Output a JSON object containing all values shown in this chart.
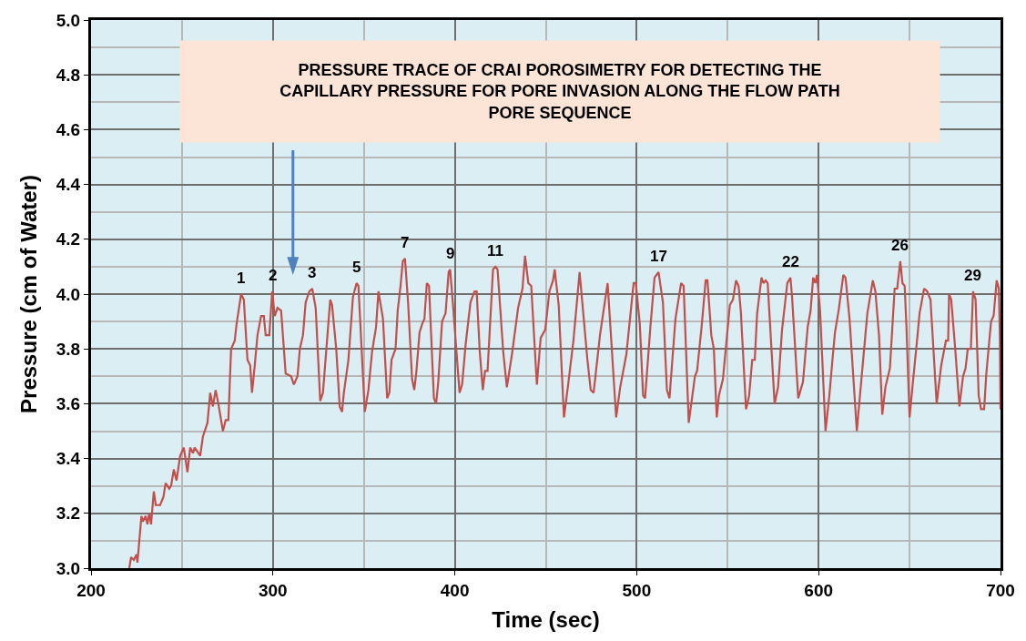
{
  "chart_data": {
    "type": "line",
    "title": "PRESSURE TRACE OF CRAI POROSIMETRY FOR DETECTING THE\nCAPILLARY PRESSURE FOR PORE INVASION ALONG THE FLOW PATH\nPORE SEQUENCE",
    "xlabel": "Time (sec)",
    "ylabel": "Pressure (cm of Water)",
    "series": [
      {
        "color": "#c0504d",
        "x": [
          221,
          222,
          223.5,
          225,
          225.5,
          227.7,
          228.5,
          230,
          231,
          232,
          233,
          234.5,
          235.6,
          238,
          239.8,
          241,
          243,
          244,
          245.5,
          247,
          249,
          251,
          253,
          254.5,
          256,
          257,
          260,
          261.5,
          264,
          265.5,
          267,
          268.5,
          270,
          272.5,
          274,
          275.5,
          277,
          279,
          280,
          282.5,
          284,
          286,
          287.5,
          288.5,
          290,
          291.5,
          293.5,
          295,
          296,
          298,
          299.6,
          301,
          302.5,
          304.5,
          307,
          310,
          311.5,
          313.5,
          314.8,
          316.5,
          318,
          320,
          321.6,
          323.5,
          326,
          327.5,
          331.5,
          332.5,
          334.8,
          336.7,
          338,
          339,
          341.5,
          344,
          346,
          347,
          350.5,
          352.5,
          354.5,
          356.7,
          358,
          360.5,
          362.8,
          364,
          365.2,
          367.4,
          368.6,
          370,
          371.4,
          372.6,
          374.3,
          376.5,
          377.7,
          378.9,
          380.6,
          382,
          383.3,
          384.6,
          385.8,
          388.5,
          389.7,
          390.9,
          393,
          394.9,
          396.6,
          397.4,
          399,
          400.9,
          402.6,
          404,
          406,
          408.6,
          410.8,
          412,
          413.7,
          415.4,
          416.6,
          418,
          421,
          422.3,
          423.5,
          426.6,
          428.6,
          431.4,
          434.8,
          437.2,
          438.6,
          440.4,
          442,
          445.1,
          447.2,
          449.7,
          452,
          454,
          454.9,
          457.1,
          460,
          462.3,
          465.2,
          468.6,
          472.9,
          474.7,
          476.3,
          479.8,
          484,
          488.7,
          490.9,
          494.3,
          498.3,
          499.5,
          501.7,
          503.5,
          504.6,
          507.5,
          509.8,
          512,
          514.4,
          516.6,
          518,
          521.3,
          524.4,
          525.8,
          528.6,
          529.8,
          532,
          533.2,
          535.8,
          537.9,
          538.9,
          541,
          542.4,
          544,
          545.2,
          547.4,
          551.2,
          552.9,
          554.6,
          556,
          557.2,
          560.1,
          561.8,
          563.5,
          564.9,
          566.2,
          568.6,
          569.7,
          570.9,
          572,
          575.8,
          577.7,
          579.9,
          582.8,
          584.5,
          585.4,
          588.8,
          591.4,
          594,
          595.6,
          597,
          598.2,
          599.1,
          600.8,
          603.8,
          605.9,
          607.6,
          609,
          611,
          613.6,
          614.8,
          617,
          621,
          623.8,
          626.8,
          629.8,
          631.2,
          633.2,
          635,
          636.7,
          639.2,
          641.8,
          643.2,
          644.9,
          646.1,
          647.3,
          648.3,
          650,
          652,
          654.1,
          655.5,
          658,
          659.7,
          661.5,
          664.9,
          667.4,
          670,
          671.2,
          671.7,
          672.9,
          675.1,
          677.4,
          679.4,
          680.8,
          682,
          683.7,
          684.9,
          686.3,
          688,
          689.3,
          691,
          692.2,
          694.8,
          696.2,
          697.9,
          699.1,
          699.6,
          700
        ],
        "values": [
          3.0,
          3.04,
          3.03,
          3.05,
          3.02,
          3.19,
          3.17,
          3.19,
          3.16,
          3.2,
          3.16,
          3.28,
          3.23,
          3.23,
          3.26,
          3.31,
          3.29,
          3.3,
          3.36,
          3.32,
          3.41,
          3.44,
          3.35,
          3.44,
          3.42,
          3.44,
          3.41,
          3.48,
          3.53,
          3.64,
          3.59,
          3.65,
          3.6,
          3.5,
          3.54,
          3.54,
          3.8,
          3.83,
          3.89,
          4.0,
          3.98,
          3.76,
          3.74,
          3.64,
          3.74,
          3.85,
          3.92,
          3.92,
          3.85,
          3.85,
          4.01,
          3.92,
          3.95,
          3.94,
          3.71,
          3.7,
          3.67,
          3.7,
          3.8,
          3.85,
          3.97,
          4.01,
          4.02,
          3.95,
          3.61,
          3.64,
          3.98,
          3.96,
          3.8,
          3.59,
          3.57,
          3.64,
          3.76,
          3.99,
          4.04,
          4.03,
          3.57,
          3.65,
          3.79,
          3.88,
          4.01,
          3.91,
          3.62,
          3.64,
          3.76,
          3.8,
          3.94,
          4.02,
          4.12,
          4.13,
          3.97,
          3.69,
          3.65,
          3.72,
          3.86,
          3.89,
          3.91,
          4.04,
          4.03,
          3.62,
          3.6,
          3.68,
          3.9,
          3.93,
          4.08,
          4.09,
          3.96,
          3.79,
          3.64,
          3.67,
          3.82,
          3.97,
          4.01,
          4.01,
          3.79,
          3.65,
          3.72,
          3.72,
          4.09,
          4.1,
          4.09,
          3.79,
          3.66,
          3.78,
          3.95,
          4.02,
          4.14,
          4.04,
          4.03,
          3.67,
          3.84,
          3.87,
          4.01,
          4.05,
          4.09,
          3.96,
          3.55,
          3.67,
          3.83,
          4.08,
          3.76,
          3.65,
          3.64,
          3.85,
          4.04,
          3.55,
          3.66,
          3.78,
          4.04,
          4.04,
          3.89,
          3.63,
          3.62,
          3.88,
          4.06,
          4.08,
          3.97,
          3.65,
          3.62,
          3.91,
          4.04,
          4.03,
          3.53,
          3.59,
          3.7,
          3.72,
          3.89,
          4.05,
          4.05,
          3.85,
          3.8,
          3.55,
          3.63,
          3.69,
          3.96,
          3.98,
          4.05,
          4.03,
          3.94,
          3.58,
          3.63,
          3.76,
          3.76,
          3.93,
          4.06,
          4.04,
          4.05,
          4.04,
          3.6,
          3.66,
          3.87,
          4.04,
          4.06,
          3.99,
          3.62,
          3.68,
          3.88,
          3.94,
          4.06,
          4.04,
          4.07,
          3.94,
          3.5,
          3.63,
          3.76,
          3.86,
          3.94,
          4.07,
          4.06,
          3.91,
          3.5,
          3.71,
          3.93,
          4.05,
          4.01,
          3.85,
          3.56,
          3.66,
          3.73,
          4.02,
          4.02,
          4.12,
          4.04,
          4.03,
          3.88,
          3.55,
          3.69,
          3.83,
          3.93,
          4.02,
          4.01,
          3.98,
          3.6,
          3.74,
          3.83,
          3.83,
          4.0,
          3.98,
          3.8,
          3.59,
          3.7,
          3.73,
          3.8,
          3.8,
          4.01,
          3.98,
          3.63,
          3.58,
          3.58,
          3.71,
          3.9,
          3.92,
          4.05,
          4.02,
          3.86,
          3.58
        ]
      }
    ],
    "xlim": [
      200,
      700
    ],
    "xticks": [
      200,
      300,
      400,
      500,
      600,
      700
    ],
    "ylim": [
      3,
      5
    ],
    "yticks": [
      {
        "value": 3,
        "label": "3.0"
      },
      {
        "value": 3.2,
        "label": "3.2"
      },
      {
        "value": 3.4,
        "label": "3.4"
      },
      {
        "value": 3.6,
        "label": "3.6"
      },
      {
        "value": 3.8,
        "label": "3.8"
      },
      {
        "value": 4,
        "label": "4.0"
      },
      {
        "value": 4.2,
        "label": "4.2"
      },
      {
        "value": 4.4,
        "label": "4.4"
      },
      {
        "value": 4.6,
        "label": "4.6"
      },
      {
        "value": 4.8,
        "label": "4.8"
      },
      {
        "value": 5,
        "label": "5.0"
      }
    ],
    "annotations": [
      {
        "text": "1",
        "x": 282.5,
        "y": 4.0
      },
      {
        "text": "2",
        "x": 299.6,
        "y": 4.01
      },
      {
        "text": "3",
        "x": 321.6,
        "y": 4.02
      },
      {
        "text": "5",
        "x": 346,
        "y": 4.04
      },
      {
        "text": "7",
        "x": 372.6,
        "y": 4.13
      },
      {
        "text": "9",
        "x": 397.4,
        "y": 4.09
      },
      {
        "text": "11",
        "x": 422.3,
        "y": 4.1
      },
      {
        "text": "17",
        "x": 512,
        "y": 4.08
      },
      {
        "text": "22",
        "x": 584.5,
        "y": 4.06
      },
      {
        "text": "26",
        "x": 644.9,
        "y": 4.12
      },
      {
        "text": "29",
        "x": 684.9,
        "y": 4.01
      }
    ],
    "grid": true,
    "marker": "none",
    "line_style": "solid"
  }
}
